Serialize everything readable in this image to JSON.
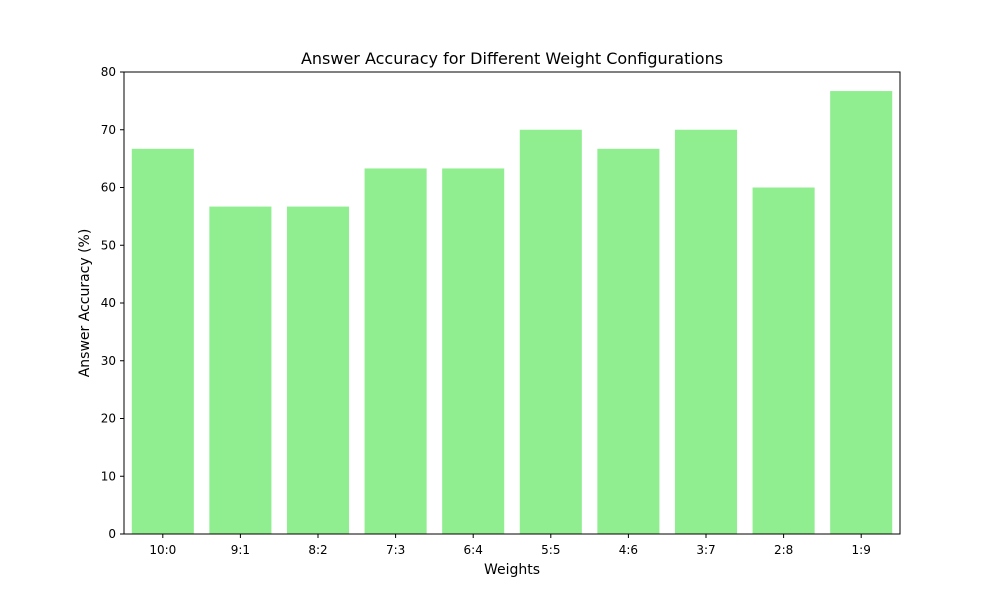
{
  "chart_data": {
    "type": "bar",
    "title": "Answer Accuracy for Different Weight Configurations",
    "xlabel": "Weights",
    "ylabel": "Answer Accuracy (%)",
    "categories": [
      "10:0",
      "9:1",
      "8:2",
      "7:3",
      "6:4",
      "5:5",
      "4:6",
      "3:7",
      "2:8",
      "1:9"
    ],
    "values": [
      66.7,
      56.7,
      56.7,
      63.3,
      63.3,
      70.0,
      66.7,
      70.0,
      60.0,
      76.7
    ],
    "ylim": [
      0,
      80
    ],
    "yticks": [
      0,
      10,
      20,
      30,
      40,
      50,
      60,
      70,
      80
    ],
    "grid": false,
    "bar_color": "#90ee90"
  }
}
